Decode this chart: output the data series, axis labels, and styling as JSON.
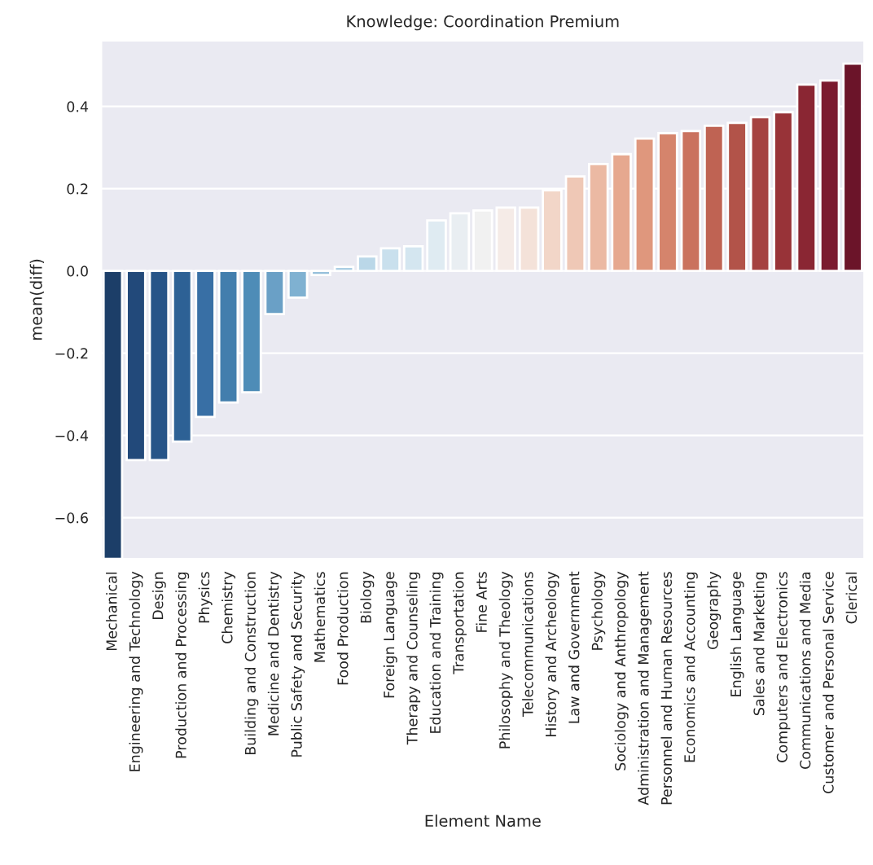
{
  "chart_data": {
    "type": "bar",
    "title": "Knowledge: Coordination Premium",
    "xlabel": "Element Name",
    "ylabel": "mean(diff)",
    "categories": [
      "Mechanical",
      "Engineering and Technology",
      "Design",
      "Production and Processing",
      "Physics",
      "Chemistry",
      "Building and Construction",
      "Medicine and Dentistry",
      "Public Safety and Security",
      "Mathematics",
      "Food Production",
      "Biology",
      "Foreign Language",
      "Therapy and Counseling",
      "Education and Training",
      "Transportation",
      "Fine Arts",
      "Philosophy and Theology",
      "Telecommunications",
      "History and Archeology",
      "Law and Government",
      "Psychology",
      "Sociology and Anthropology",
      "Administration and Management",
      "Personnel and Human Resources",
      "Economics and Accounting",
      "Geography",
      "English Language",
      "Sales and Marketing",
      "Computers and Electronics",
      "Communications and Media",
      "Customer and Personal Service",
      "Clerical"
    ],
    "values": [
      -0.7,
      -0.46,
      -0.46,
      -0.415,
      -0.355,
      -0.32,
      -0.295,
      -0.105,
      -0.065,
      -0.01,
      0.01,
      0.035,
      0.055,
      0.06,
      0.123,
      0.14,
      0.147,
      0.154,
      0.154,
      0.196,
      0.23,
      0.26,
      0.284,
      0.322,
      0.335,
      0.34,
      0.353,
      0.36,
      0.374,
      0.386,
      0.453,
      0.463,
      0.504
    ],
    "colors": [
      "#1c3e68",
      "#22497a",
      "#275588",
      "#2d6195",
      "#386fa5",
      "#427ead",
      "#4e8cb7",
      "#6aa0c6",
      "#7fb1d1",
      "#96c0db",
      "#aacde3",
      "#bad7e8",
      "#c9e0ed",
      "#d4e6f0",
      "#dfebf2",
      "#e9eef2",
      "#f1f1f1",
      "#f5ebe7",
      "#f4e2d9",
      "#f2d6c8",
      "#efc8b6",
      "#ebb9a3",
      "#e6a88f",
      "#df977d",
      "#d5846c",
      "#ca725e",
      "#bf6353",
      "#b25349",
      "#a54240",
      "#983338",
      "#8a2633",
      "#7b1b2f",
      "#6b1429"
    ],
    "ylim": [
      -0.7,
      0.56
    ],
    "yticks": [
      {
        "value": -0.6,
        "label": "−0.6"
      },
      {
        "value": -0.4,
        "label": "−0.4"
      },
      {
        "value": -0.2,
        "label": "−0.2"
      },
      {
        "value": 0.0,
        "label": "0.0"
      },
      {
        "value": 0.2,
        "label": "0.2"
      },
      {
        "value": 0.4,
        "label": "0.4"
      }
    ],
    "grid": "y"
  }
}
